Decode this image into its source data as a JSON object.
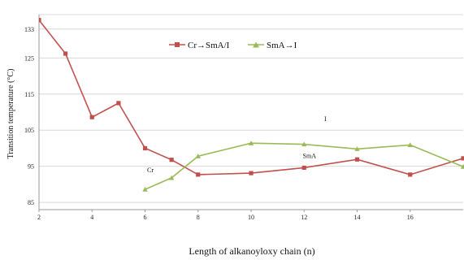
{
  "chart_data": {
    "type": "line",
    "xlabel": "Length of alkanoyloxy chain (n)",
    "ylabel": "Transition temperature (°C)",
    "xlim": [
      2,
      18
    ],
    "ylim": [
      83,
      137
    ],
    "xticks": [
      "2",
      "4",
      "6",
      "8",
      "10",
      "12",
      "14",
      "16"
    ],
    "xtick_values": [
      2,
      4,
      6,
      8,
      10,
      12,
      14,
      16
    ],
    "yticks": [
      "85",
      "95",
      "105",
      "115",
      "125",
      "133"
    ],
    "ytick_values": [
      85,
      95,
      105,
      115,
      125,
      133
    ],
    "grid": "horizontal",
    "legend_position": "top-center",
    "series": [
      {
        "name": "Cr→SmA/I",
        "color": "#c0504d",
        "marker": "square",
        "x": [
          2,
          3,
          4,
          5,
          6,
          7,
          8,
          10,
          12,
          14,
          16,
          18
        ],
        "y": [
          135.5,
          126.2,
          108.6,
          112.5,
          100,
          96.8,
          92.7,
          93.1,
          94.6,
          96.9,
          92.7,
          97.2
        ]
      },
      {
        "name": "SmA→I",
        "color": "#9bbb59",
        "marker": "triangle",
        "x": [
          6,
          7,
          8,
          10,
          12,
          14,
          16,
          18
        ],
        "y": [
          88.6,
          91.8,
          97.8,
          101.4,
          101.1,
          99.8,
          100.9,
          94.9
        ]
      }
    ],
    "annotations": [
      {
        "text": "I",
        "x": 12.8,
        "y": 107.5
      },
      {
        "text": "SmA",
        "x": 12.2,
        "y": 97.3
      },
      {
        "text": "Cr",
        "x": 6.2,
        "y": 93.3
      }
    ]
  }
}
